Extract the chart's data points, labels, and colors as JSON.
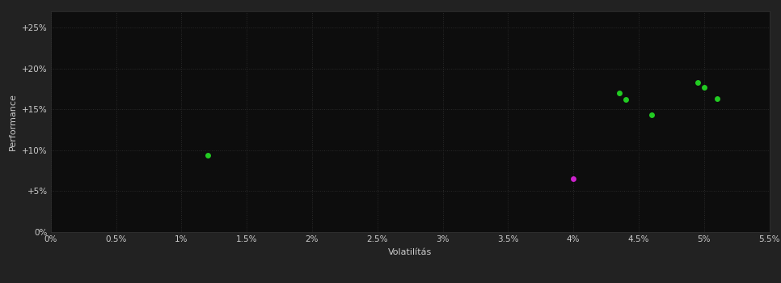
{
  "background_color": "#222222",
  "plot_bg_color": "#0d0d0d",
  "grid_color": "#2a2a2a",
  "text_color": "#cccccc",
  "xlabel": "Volatilítás",
  "ylabel": "Performance",
  "xlim": [
    0.0,
    0.055
  ],
  "ylim": [
    0.0,
    0.27
  ],
  "xticks": [
    0.0,
    0.005,
    0.01,
    0.015,
    0.02,
    0.025,
    0.03,
    0.035,
    0.04,
    0.045,
    0.05,
    0.055
  ],
  "yticks": [
    0.0,
    0.05,
    0.1,
    0.15,
    0.2,
    0.25
  ],
  "ytick_labels": [
    "0%",
    "+5%",
    "+10%",
    "+15%",
    "+20%",
    "+25%"
  ],
  "xtick_labels": [
    "0%",
    "0.5%",
    "1%",
    "1.5%",
    "2%",
    "2.5%",
    "3%",
    "3.5%",
    "4%",
    "4.5%",
    "5%",
    "5.5%"
  ],
  "green_points": [
    [
      0.012,
      0.094
    ],
    [
      0.0435,
      0.17
    ],
    [
      0.044,
      0.162
    ],
    [
      0.046,
      0.143
    ],
    [
      0.0495,
      0.183
    ],
    [
      0.05,
      0.177
    ],
    [
      0.051,
      0.163
    ]
  ],
  "magenta_points": [
    [
      0.04,
      0.065
    ]
  ],
  "green_color": "#22cc22",
  "magenta_color": "#cc22cc",
  "marker_size": 5
}
